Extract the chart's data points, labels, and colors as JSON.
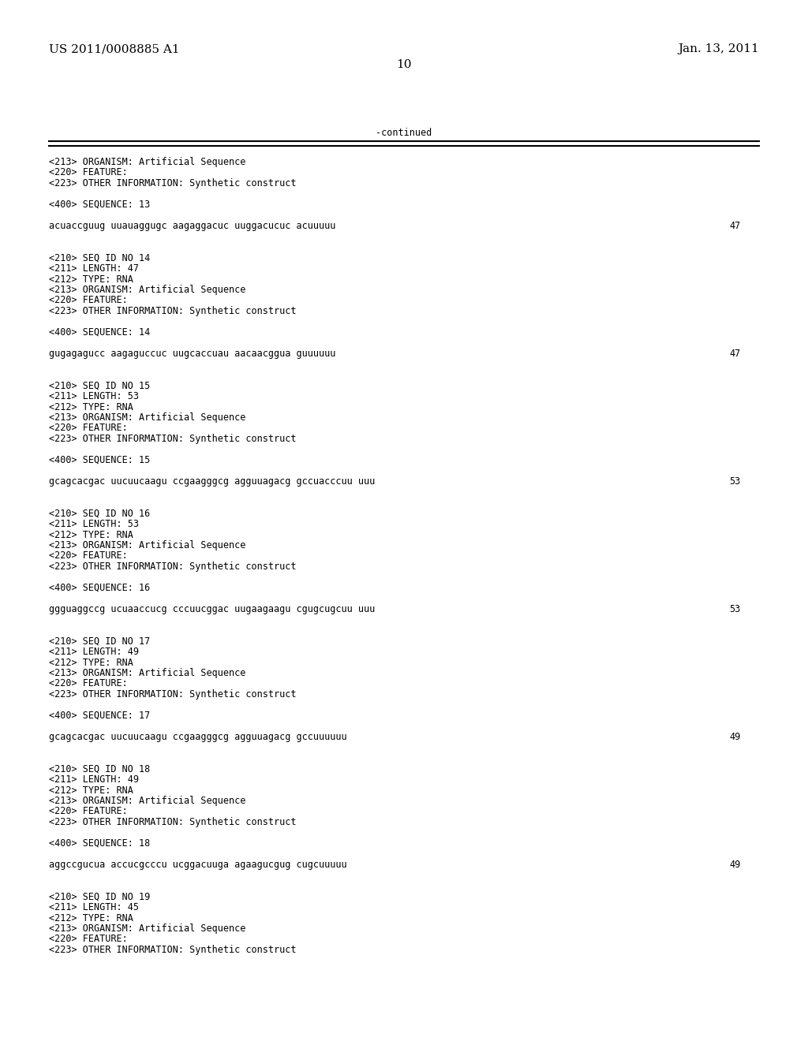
{
  "header_left": "US 2011/0008885 A1",
  "header_right": "Jan. 13, 2011",
  "page_number": "10",
  "continued_label": "-continued",
  "background_color": "#ffffff",
  "text_color": "#000000",
  "font_size_header": 11,
  "font_size_body": 9,
  "font_size_mono": 8.5,
  "lines": [
    {
      "text": "<213> ORGANISM: Artificial Sequence"
    },
    {
      "text": "<220> FEATURE:"
    },
    {
      "text": "<223> OTHER INFORMATION: Synthetic construct"
    },
    {
      "text": ""
    },
    {
      "text": "<400> SEQUENCE: 13"
    },
    {
      "text": ""
    },
    {
      "text": "acuaccguug uuauaggugc aagaggacuc uuggacucuc acuuuuu",
      "num": "47"
    },
    {
      "text": ""
    },
    {
      "text": ""
    },
    {
      "text": "<210> SEQ ID NO 14"
    },
    {
      "text": "<211> LENGTH: 47"
    },
    {
      "text": "<212> TYPE: RNA"
    },
    {
      "text": "<213> ORGANISM: Artificial Sequence"
    },
    {
      "text": "<220> FEATURE:"
    },
    {
      "text": "<223> OTHER INFORMATION: Synthetic construct"
    },
    {
      "text": ""
    },
    {
      "text": "<400> SEQUENCE: 14"
    },
    {
      "text": ""
    },
    {
      "text": "gugagagucc aagaguccuc uugcaccuau aacaacggua guuuuuu",
      "num": "47"
    },
    {
      "text": ""
    },
    {
      "text": ""
    },
    {
      "text": "<210> SEQ ID NO 15"
    },
    {
      "text": "<211> LENGTH: 53"
    },
    {
      "text": "<212> TYPE: RNA"
    },
    {
      "text": "<213> ORGANISM: Artificial Sequence"
    },
    {
      "text": "<220> FEATURE:"
    },
    {
      "text": "<223> OTHER INFORMATION: Synthetic construct"
    },
    {
      "text": ""
    },
    {
      "text": "<400> SEQUENCE: 15"
    },
    {
      "text": ""
    },
    {
      "text": "gcagcacgac uucuucaagu ccgaagggcg agguuagacg gccuacccuu uuu",
      "num": "53"
    },
    {
      "text": ""
    },
    {
      "text": ""
    },
    {
      "text": "<210> SEQ ID NO 16"
    },
    {
      "text": "<211> LENGTH: 53"
    },
    {
      "text": "<212> TYPE: RNA"
    },
    {
      "text": "<213> ORGANISM: Artificial Sequence"
    },
    {
      "text": "<220> FEATURE:"
    },
    {
      "text": "<223> OTHER INFORMATION: Synthetic construct"
    },
    {
      "text": ""
    },
    {
      "text": "<400> SEQUENCE: 16"
    },
    {
      "text": ""
    },
    {
      "text": "ggguaggccg ucuaaccucg cccuucggac uugaagaagu cgugcugcuu uuu",
      "num": "53"
    },
    {
      "text": ""
    },
    {
      "text": ""
    },
    {
      "text": "<210> SEQ ID NO 17"
    },
    {
      "text": "<211> LENGTH: 49"
    },
    {
      "text": "<212> TYPE: RNA"
    },
    {
      "text": "<213> ORGANISM: Artificial Sequence"
    },
    {
      "text": "<220> FEATURE:"
    },
    {
      "text": "<223> OTHER INFORMATION: Synthetic construct"
    },
    {
      "text": ""
    },
    {
      "text": "<400> SEQUENCE: 17"
    },
    {
      "text": ""
    },
    {
      "text": "gcagcacgac uucuucaagu ccgaagggcg agguuagacg gccuuuuuu",
      "num": "49"
    },
    {
      "text": ""
    },
    {
      "text": ""
    },
    {
      "text": "<210> SEQ ID NO 18"
    },
    {
      "text": "<211> LENGTH: 49"
    },
    {
      "text": "<212> TYPE: RNA"
    },
    {
      "text": "<213> ORGANISM: Artificial Sequence"
    },
    {
      "text": "<220> FEATURE:"
    },
    {
      "text": "<223> OTHER INFORMATION: Synthetic construct"
    },
    {
      "text": ""
    },
    {
      "text": "<400> SEQUENCE: 18"
    },
    {
      "text": ""
    },
    {
      "text": "aggccgucua accucgcccu ucggacuuga agaagucgug cugcuuuuu",
      "num": "49"
    },
    {
      "text": ""
    },
    {
      "text": ""
    },
    {
      "text": "<210> SEQ ID NO 19"
    },
    {
      "text": "<211> LENGTH: 45"
    },
    {
      "text": "<212> TYPE: RNA"
    },
    {
      "text": "<213> ORGANISM: Artificial Sequence"
    },
    {
      "text": "<220> FEATURE:"
    },
    {
      "text": "<223> OTHER INFORMATION: Synthetic construct"
    }
  ]
}
